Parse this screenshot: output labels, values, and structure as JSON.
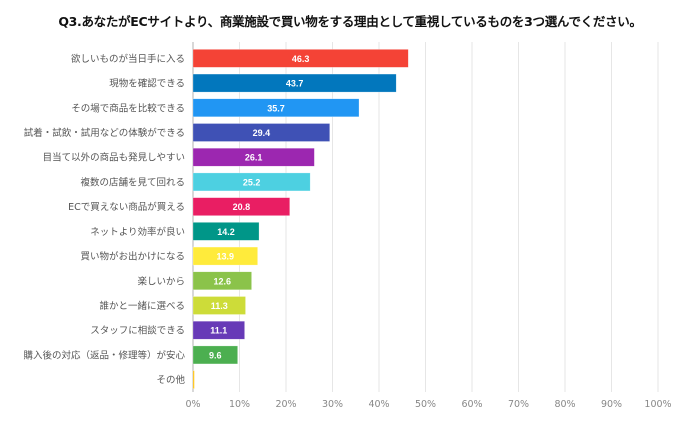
{
  "chart_data": {
    "type": "bar",
    "orientation": "horizontal",
    "title": "Q3.あなたがECサイトより、商業施設で買い物をする理由として重視しているものを3つ選んでください。",
    "xlabel": "",
    "ylabel": "",
    "xlim": [
      0,
      100
    ],
    "x_ticks": [
      "0%",
      "10%",
      "20%",
      "30%",
      "40%",
      "50%",
      "60%",
      "70%",
      "80%",
      "90%",
      "100%"
    ],
    "grid": true,
    "legend": "none",
    "categories": [
      "欲しいものが当日手に入る",
      "現物を確認できる",
      "その場で商品を比較できる",
      "試着・試飲・試用などの体験ができる",
      "目当て以外の商品も発見しやすい",
      "複数の店舗を見て回れる",
      "ECで買えない商品が買える",
      "ネットより効率が良い",
      "買い物がお出かけになる",
      "楽しいから",
      "誰かと一緒に選べる",
      "スタッフに相談できる",
      "購入後の対応（返品・修理等）が安心",
      "その他"
    ],
    "values": [
      46.3,
      43.7,
      35.7,
      29.4,
      26.1,
      25.2,
      20.8,
      14.2,
      13.9,
      12.6,
      11.3,
      11.1,
      9.6,
      0.3
    ],
    "data_labels": [
      "46.3",
      "43.7",
      "35.7",
      "29.4",
      "26.1",
      "25.2",
      "20.8",
      "14.2",
      "13.9",
      "12.6",
      "11.3",
      "11.1",
      "9.6",
      ""
    ],
    "colors": [
      "#f44336",
      "#0277bd",
      "#2196f3",
      "#3f51b5",
      "#9c27b0",
      "#4dd0e1",
      "#e91e63",
      "#009688",
      "#ffeb3b",
      "#8bc34a",
      "#cddc39",
      "#673ab7",
      "#4caf50",
      "#ffc107"
    ]
  }
}
